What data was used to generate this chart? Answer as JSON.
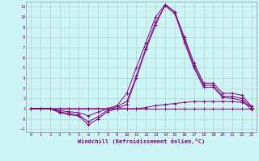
{
  "xlabel": "Windchill (Refroidissement éolien,°C)",
  "xlabel_color": "#800080",
  "background_color": "#cef5f5",
  "grid_color": "#b0c8c8",
  "line_color": "#800080",
  "x": [
    0,
    1,
    2,
    3,
    4,
    5,
    6,
    7,
    8,
    9,
    10,
    11,
    12,
    13,
    14,
    15,
    16,
    17,
    18,
    19,
    20,
    21,
    22,
    23
  ],
  "line1": [
    1,
    1,
    1,
    0.8,
    0.7,
    0.6,
    0.3,
    0.65,
    1.0,
    1.3,
    2.5,
    5.0,
    7.5,
    10.0,
    11.2,
    10.5,
    8.0,
    5.5,
    3.5,
    3.5,
    2.5,
    2.5,
    2.3,
    1.2
  ],
  "line2": [
    1,
    1,
    1,
    0.7,
    0.5,
    0.4,
    -0.3,
    0.2,
    0.85,
    1.2,
    1.7,
    4.2,
    7.0,
    9.5,
    11.1,
    10.3,
    7.8,
    5.2,
    3.3,
    3.3,
    2.2,
    2.2,
    2.0,
    1.1
  ],
  "line3": [
    1,
    1,
    1,
    0.6,
    0.4,
    0.3,
    -0.6,
    0.0,
    0.7,
    1.0,
    1.4,
    4.0,
    6.8,
    9.2,
    11.2,
    10.5,
    7.5,
    5.0,
    3.1,
    3.1,
    2.1,
    2.0,
    1.8,
    0.9
  ],
  "line4": [
    1,
    1,
    1,
    1,
    1,
    1,
    1,
    1,
    1,
    1,
    1,
    1,
    1,
    1,
    1,
    1,
    1,
    1,
    1,
    1,
    1,
    1,
    1,
    1
  ],
  "line5": [
    1,
    1,
    1,
    1,
    1,
    1,
    1,
    1,
    1,
    1,
    1,
    1.0,
    1.1,
    1.3,
    1.4,
    1.5,
    1.6,
    1.7,
    1.7,
    1.7,
    1.7,
    1.7,
    1.6,
    1.2
  ],
  "ylim": [
    -1.3,
    11.5
  ],
  "xlim": [
    -0.5,
    23.5
  ],
  "yticks": [
    -1,
    0,
    1,
    2,
    3,
    4,
    5,
    6,
    7,
    8,
    9,
    10,
    11
  ],
  "xticks": [
    0,
    1,
    2,
    3,
    4,
    5,
    6,
    7,
    8,
    9,
    10,
    11,
    12,
    13,
    14,
    15,
    16,
    17,
    18,
    19,
    20,
    21,
    22,
    23
  ]
}
